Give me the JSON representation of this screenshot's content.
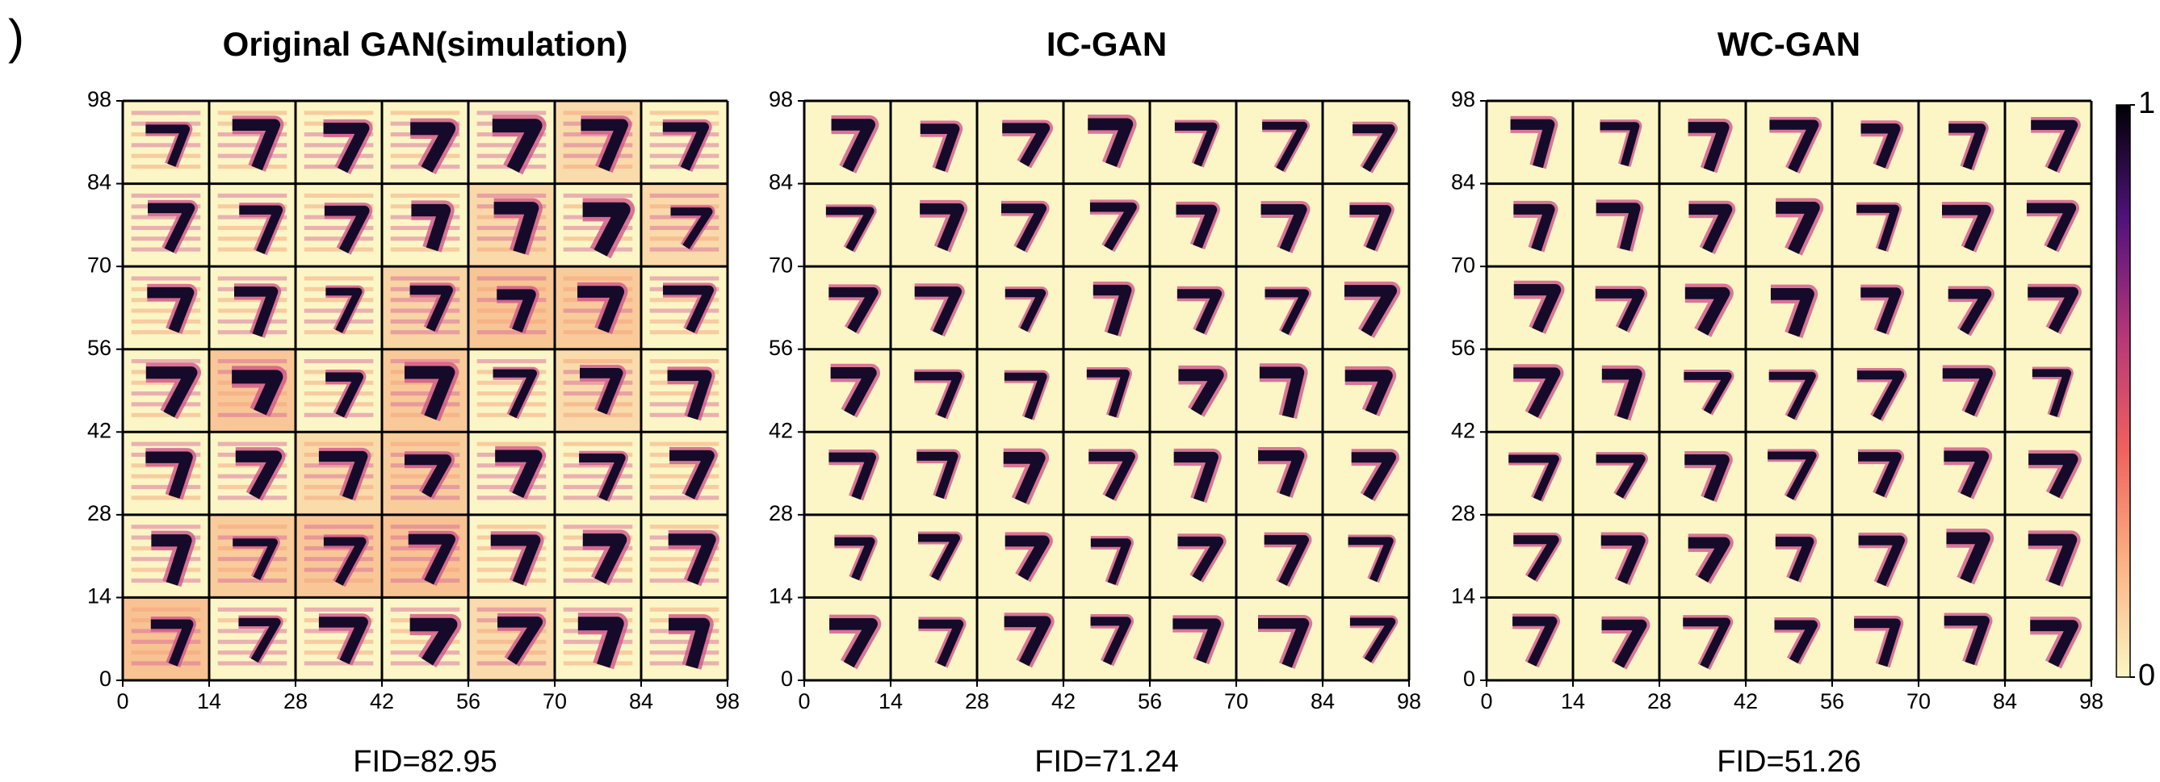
{
  "panel_label": ")",
  "chart_data": [
    {
      "type": "image-grid",
      "title": "Original GAN(simulation)",
      "caption": "FID=82.95",
      "xlim": [
        0,
        98
      ],
      "ylim": [
        0,
        98
      ],
      "xticks": [
        0,
        14,
        28,
        42,
        56,
        70,
        84,
        98
      ],
      "yticks": [
        0,
        14,
        28,
        42,
        56,
        70,
        84,
        98
      ],
      "noisy": true
    },
    {
      "type": "image-grid",
      "title": "IC-GAN",
      "caption": "FID=71.24",
      "xlim": [
        0,
        98
      ],
      "ylim": [
        0,
        98
      ],
      "xticks": [
        0,
        14,
        28,
        42,
        56,
        70,
        84,
        98
      ],
      "yticks": [
        0,
        14,
        28,
        42,
        56,
        70,
        84,
        98
      ],
      "noisy": false
    },
    {
      "type": "image-grid",
      "title": "WC-GAN",
      "caption": "FID=51.26",
      "xlim": [
        0,
        98
      ],
      "ylim": [
        0,
        98
      ],
      "xticks": [
        0,
        14,
        28,
        42,
        56,
        70,
        84,
        98
      ],
      "yticks": [
        0,
        14,
        28,
        42,
        56,
        70,
        84,
        98
      ],
      "noisy": false,
      "colorbar": {
        "ylim": [
          0,
          1
        ],
        "yticks": [
          0,
          1
        ]
      }
    }
  ]
}
